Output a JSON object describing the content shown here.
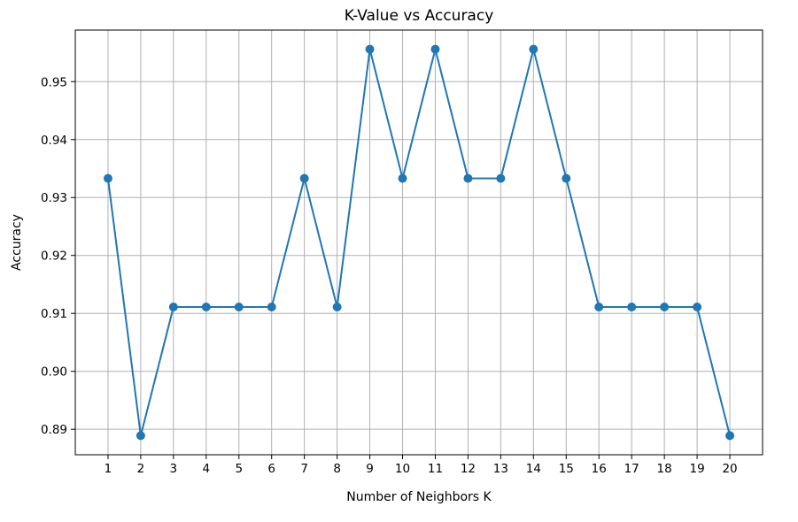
{
  "chart_data": {
    "type": "line",
    "title": "K-Value vs Accuracy",
    "xlabel": "Number of Neighbors K",
    "ylabel": "Accuracy",
    "x": [
      1,
      2,
      3,
      4,
      5,
      6,
      7,
      8,
      9,
      10,
      11,
      12,
      13,
      14,
      15,
      16,
      17,
      18,
      19,
      20
    ],
    "series": [
      {
        "values": [
          0.9333,
          0.8889,
          0.9111,
          0.9111,
          0.9111,
          0.9111,
          0.9333,
          0.9111,
          0.9556,
          0.9333,
          0.9556,
          0.9333,
          0.9333,
          0.9556,
          0.9333,
          0.9111,
          0.9111,
          0.9111,
          0.9111,
          0.8889
        ],
        "color": "#1f77b4",
        "marker": "circle"
      }
    ],
    "xticks": [
      "1",
      "2",
      "3",
      "4",
      "5",
      "6",
      "7",
      "8",
      "9",
      "10",
      "11",
      "12",
      "13",
      "14",
      "15",
      "16",
      "17",
      "18",
      "19",
      "20"
    ],
    "yticks": [
      "0.89",
      "0.90",
      "0.91",
      "0.92",
      "0.93",
      "0.94",
      "0.95"
    ],
    "xlim": [
      0.0,
      21.0
    ],
    "ylim": [
      0.8856,
      0.9589
    ],
    "grid": true,
    "grid_color": "#b0b0b0",
    "axes_color": "#000000"
  }
}
